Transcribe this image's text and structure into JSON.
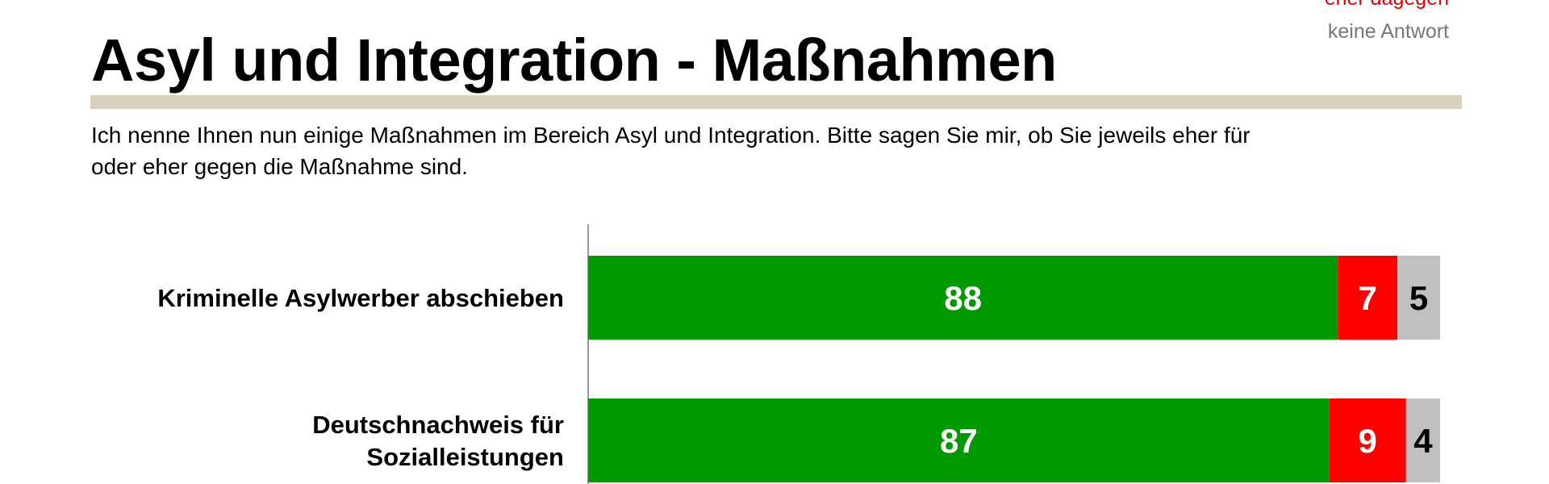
{
  "legend": {
    "items": [
      {
        "label": "eher dagegen",
        "color": "#ff0000"
      },
      {
        "label": "keine Antwort",
        "color": "#c0c0c0"
      }
    ]
  },
  "header": {
    "title": "Asyl und Integration - Maßnahmen",
    "question": "Ich nenne Ihnen nun einige Maßnahmen im Bereich Asyl und Integration. Bitte sagen Sie mir, ob Sie jeweils eher für oder eher gegen die Maßnahme sind."
  },
  "chart_data": {
    "type": "bar",
    "orientation": "horizontal",
    "stacked": true,
    "unit": "%",
    "xlim": [
      0,
      100
    ],
    "grid": false,
    "legend_position": "top-right",
    "categories": [
      [
        "Kriminelle Asylwerber abschieben"
      ],
      [
        "Deutschnachweis für",
        "Sozialleistungen"
      ]
    ],
    "series": [
      {
        "values": [
          88,
          87
        ],
        "color": "#009900"
      },
      {
        "name": "eher dagegen",
        "values": [
          7,
          9
        ],
        "color": "#ff0000"
      },
      {
        "name": "keine Antwort",
        "values": [
          5,
          4
        ],
        "color": "#c0c0c0"
      }
    ]
  }
}
